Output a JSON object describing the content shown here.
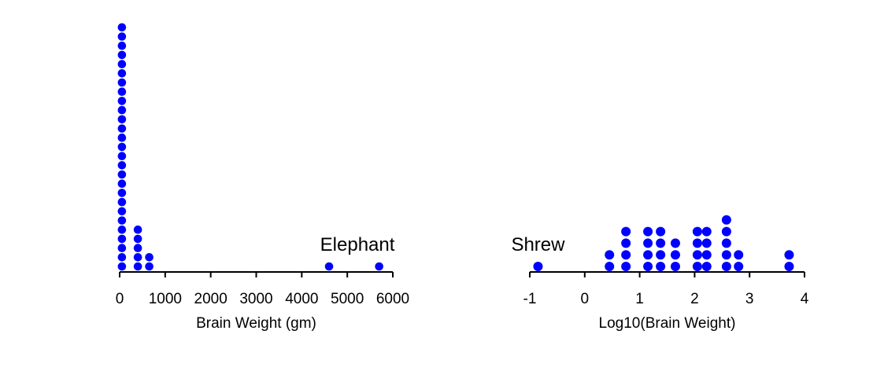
{
  "chart_data": [
    {
      "type": "scatter",
      "subtype": "dot-plot",
      "xlabel": "Brain Weight (gm)",
      "ylabel": "",
      "xlim": [
        0,
        6000
      ],
      "xticks": [
        0,
        1000,
        2000,
        3000,
        4000,
        5000,
        6000
      ],
      "xtick_labels": [
        "0",
        "1000",
        "2000",
        "3000",
        "4000",
        "5000",
        "6000"
      ],
      "dot_color": "#0000ff",
      "stacks": [
        {
          "x": 50,
          "count": 27
        },
        {
          "x": 400,
          "count": 5
        },
        {
          "x": 650,
          "count": 2
        },
        {
          "x": 4600,
          "count": 1
        },
        {
          "x": 5700,
          "count": 1
        }
      ],
      "annotations": [
        {
          "text": "Elephant",
          "x": 4600
        }
      ]
    },
    {
      "type": "scatter",
      "subtype": "dot-plot",
      "xlabel": "Log10(Brain Weight)",
      "ylabel": "",
      "xlim": [
        -1,
        4
      ],
      "xticks": [
        -1,
        0,
        1,
        2,
        3,
        4
      ],
      "xtick_labels": [
        "-1",
        "0",
        "1",
        "2",
        "3",
        "4"
      ],
      "dot_color": "#0000ff",
      "stacks": [
        {
          "x": -0.85,
          "count": 1
        },
        {
          "x": 0.45,
          "count": 2
        },
        {
          "x": 0.75,
          "count": 4
        },
        {
          "x": 1.15,
          "count": 4
        },
        {
          "x": 1.38,
          "count": 4
        },
        {
          "x": 1.65,
          "count": 3
        },
        {
          "x": 2.05,
          "count": 4
        },
        {
          "x": 2.22,
          "count": 4
        },
        {
          "x": 2.58,
          "count": 5
        },
        {
          "x": 2.8,
          "count": 2
        },
        {
          "x": 3.72,
          "count": 2
        }
      ],
      "annotations": [
        {
          "text": "Shrew",
          "x": -0.85
        }
      ]
    }
  ]
}
